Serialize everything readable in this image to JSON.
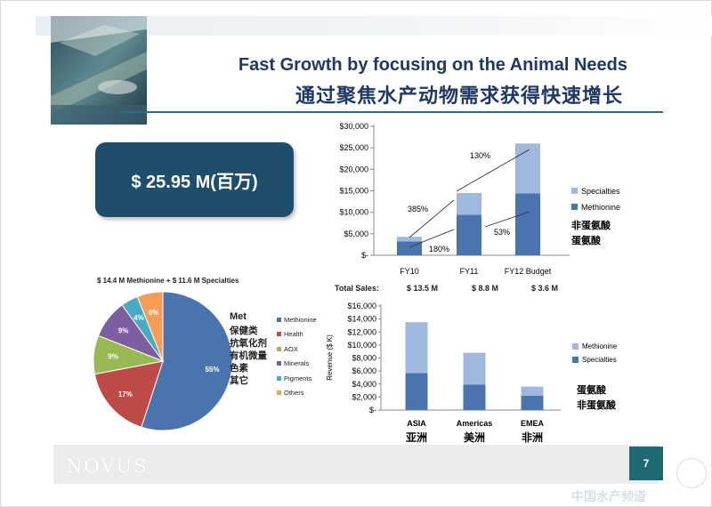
{
  "title": {
    "en": "Fast Growth by focusing on the Animal Needs",
    "cn": "通过聚焦水产动物需求获得快速增长"
  },
  "total": {
    "label": "$ 25.95 M(百万)"
  },
  "colors": {
    "methionine": "#4a74ad",
    "specialties": "#9fb8de",
    "title": "#1f3864",
    "box": "#1e4e6c"
  },
  "growth_chart": {
    "yticks": [
      "$30,000",
      "$25,000",
      "$20,000",
      "$15,000",
      "$10,000",
      "$5,000",
      "$-"
    ],
    "callouts": [
      "130%",
      "385%",
      "53%",
      "180%"
    ],
    "legend": [
      "Specialties",
      "Methionine"
    ],
    "legend_cn": [
      "非蛋氨酸",
      "蛋氨酸"
    ]
  },
  "totals_row": {
    "label": "Total Sales:",
    "values": [
      "$ 13.5 M",
      "$ 8.8 M",
      "$ 3.6 M"
    ]
  },
  "pie_chart": {
    "title": "$ 14.4 M Methionine + $ 11.6 M Specialties",
    "legend_header": "Met",
    "legend": [
      {
        "label": "Methionine",
        "cn": "",
        "color": "#4a74ad"
      },
      {
        "label": "Health",
        "cn": "保健类",
        "color": "#be4b48"
      },
      {
        "label": "AOX",
        "cn": "抗氧化剂",
        "color": "#98b954"
      },
      {
        "label": "Minerals",
        "cn": "有机微量",
        "color": "#7d5fa0"
      },
      {
        "label": "Pigments",
        "cn": "色素",
        "color": "#46aac4"
      },
      {
        "label": "Others",
        "cn": "其它",
        "color": "#f59d56"
      }
    ]
  },
  "region_chart": {
    "ylabel": "Revenue ($ K)",
    "yticks": [
      "$16,000",
      "$14,000",
      "$12,000",
      "$10,000",
      "$8,000",
      "$6,000",
      "$4,000",
      "$2,000",
      "$-"
    ],
    "legend": [
      "Methionine",
      "Specialties"
    ],
    "legend_cn": [
      "蛋氨酸",
      "非蛋氨酸"
    ],
    "categories_cn": [
      "亚洲",
      "美洲",
      "非洲"
    ]
  },
  "chart_data": [
    {
      "type": "bar",
      "stacked": true,
      "categories": [
        "FY10",
        "FY11",
        "FY12 Budget"
      ],
      "series": [
        {
          "name": "Methionine",
          "values": [
            3200,
            9400,
            14400
          ]
        },
        {
          "name": "Specialties",
          "values": [
            1100,
            5100,
            11600
          ]
        }
      ],
      "ylim": [
        0,
        30000
      ]
    },
    {
      "type": "pie",
      "categories": [
        "Methionine",
        "Health",
        "AOX",
        "Minerals",
        "Pigments",
        "Others"
      ],
      "values": [
        55,
        17,
        9,
        9,
        4,
        6
      ],
      "labels": [
        "55%",
        "17%",
        "9%",
        "9%",
        "4%",
        "6%"
      ]
    },
    {
      "type": "bar",
      "stacked": true,
      "categories": [
        "ASIA",
        "Americas",
        "EMEA"
      ],
      "series": [
        {
          "name": "Methionine",
          "values": [
            5700,
            3900,
            2200
          ]
        },
        {
          "name": "Specialties",
          "values": [
            7800,
            4900,
            1400
          ]
        }
      ],
      "ylim": [
        0,
        16000
      ]
    }
  ],
  "footer": {
    "brand": "NOVUS",
    "page": "7",
    "watermark": "中国水产频道"
  }
}
